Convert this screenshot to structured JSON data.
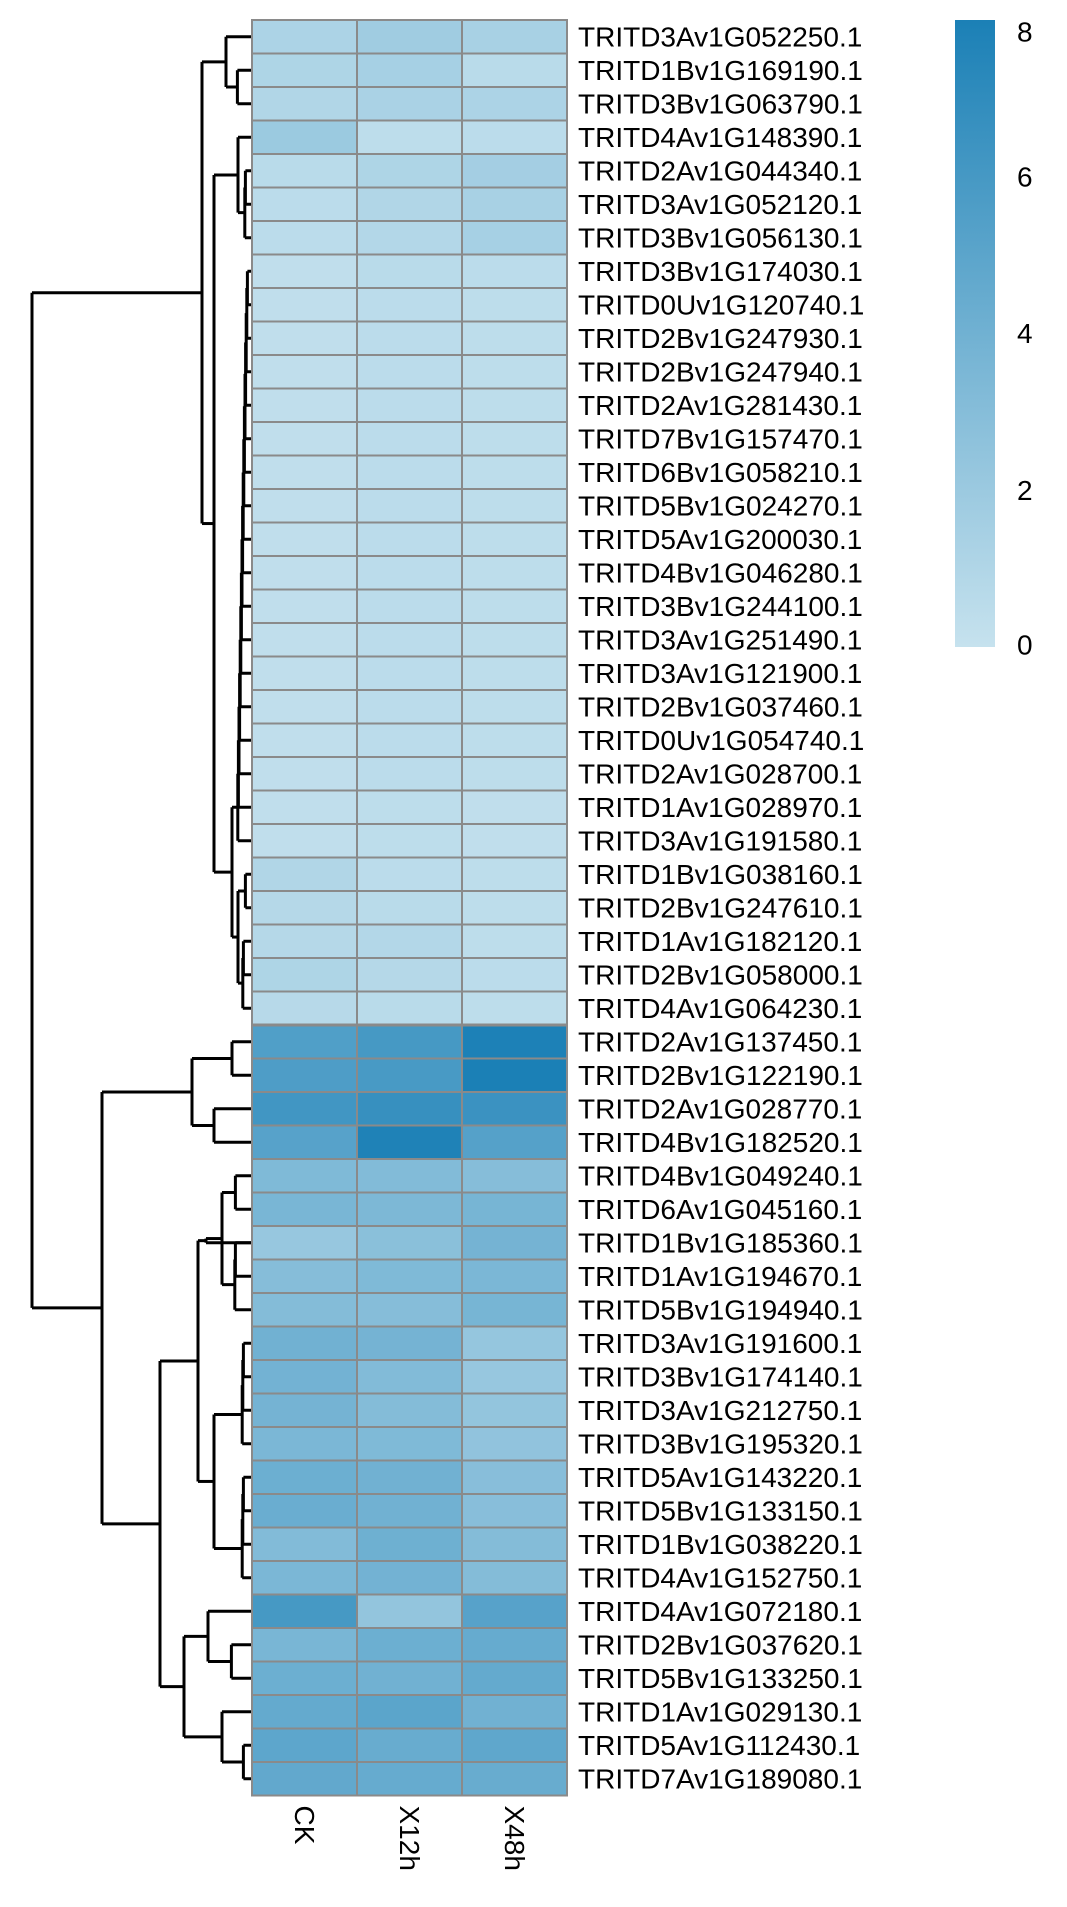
{
  "chart_data": {
    "type": "heatmap",
    "columns": [
      "CK",
      "X12h",
      "X48h"
    ],
    "rows": [
      "TRITD3Av1G052250.1",
      "TRITD1Bv1G169190.1",
      "TRITD3Bv1G063790.1",
      "TRITD4Av1G148390.1",
      "TRITD2Av1G044340.1",
      "TRITD3Av1G052120.1",
      "TRITD3Bv1G056130.1",
      "TRITD3Bv1G174030.1",
      "TRITD0Uv1G120740.1",
      "TRITD2Bv1G247930.1",
      "TRITD2Bv1G247940.1",
      "TRITD2Av1G281430.1",
      "TRITD7Bv1G157470.1",
      "TRITD6Bv1G058210.1",
      "TRITD5Bv1G024270.1",
      "TRITD5Av1G200030.1",
      "TRITD4Bv1G046280.1",
      "TRITD3Bv1G244100.1",
      "TRITD3Av1G251490.1",
      "TRITD3Av1G121900.1",
      "TRITD2Bv1G037460.1",
      "TRITD0Uv1G054740.1",
      "TRITD2Av1G028700.1",
      "TRITD1Av1G028970.1",
      "TRITD3Av1G191580.1",
      "TRITD1Bv1G038160.1",
      "TRITD2Bv1G247610.1",
      "TRITD1Av1G182120.1",
      "TRITD2Bv1G058000.1",
      "TRITD4Av1G064230.1",
      "TRITD2Av1G137450.1",
      "TRITD2Bv1G122190.1",
      "TRITD2Av1G028770.1",
      "TRITD4Bv1G182520.1",
      "TRITD4Bv1G049240.1",
      "TRITD6Av1G045160.1",
      "TRITD1Bv1G185360.1",
      "TRITD1Av1G194670.1",
      "TRITD5Bv1G194940.1",
      "TRITD3Av1G191600.1",
      "TRITD3Bv1G174140.1",
      "TRITD3Av1G212750.1",
      "TRITD3Bv1G195320.1",
      "TRITD5Av1G143220.1",
      "TRITD5Bv1G133150.1",
      "TRITD1Bv1G038220.1",
      "TRITD4Av1G152750.1",
      "TRITD4Av1G072180.1",
      "TRITD2Bv1G037620.1",
      "TRITD5Bv1G133250.1",
      "TRITD1Av1G029130.1",
      "TRITD5Av1G112430.1",
      "TRITD7Av1G189080.1"
    ],
    "values": [
      [
        1.2,
        1.8,
        1.4
      ],
      [
        1.1,
        1.5,
        0.6
      ],
      [
        1.0,
        1.3,
        1.2
      ],
      [
        2.0,
        0.4,
        0.5
      ],
      [
        0.6,
        1.1,
        1.6
      ],
      [
        0.5,
        1.0,
        1.4
      ],
      [
        0.5,
        0.9,
        1.5
      ],
      [
        0.3,
        0.6,
        0.5
      ],
      [
        0.3,
        0.5,
        0.4
      ],
      [
        0.3,
        0.5,
        0.4
      ],
      [
        0.3,
        0.5,
        0.4
      ],
      [
        0.3,
        0.5,
        0.4
      ],
      [
        0.3,
        0.5,
        0.4
      ],
      [
        0.3,
        0.5,
        0.4
      ],
      [
        0.3,
        0.5,
        0.4
      ],
      [
        0.3,
        0.5,
        0.4
      ],
      [
        0.3,
        0.5,
        0.4
      ],
      [
        0.3,
        0.5,
        0.4
      ],
      [
        0.3,
        0.5,
        0.4
      ],
      [
        0.3,
        0.5,
        0.4
      ],
      [
        0.3,
        0.5,
        0.4
      ],
      [
        0.3,
        0.5,
        0.4
      ],
      [
        0.3,
        0.5,
        0.4
      ],
      [
        0.3,
        0.4,
        0.3
      ],
      [
        0.3,
        0.4,
        0.3
      ],
      [
        1.0,
        0.5,
        0.4
      ],
      [
        0.8,
        0.6,
        0.4
      ],
      [
        0.8,
        0.9,
        0.4
      ],
      [
        1.1,
        0.8,
        0.5
      ],
      [
        0.7,
        0.6,
        0.4
      ],
      [
        5.5,
        6.0,
        7.9
      ],
      [
        5.6,
        5.9,
        8.0
      ],
      [
        6.2,
        6.7,
        6.5
      ],
      [
        5.2,
        7.8,
        5.3
      ],
      [
        3.3,
        3.2,
        3.0
      ],
      [
        3.6,
        3.4,
        3.7
      ],
      [
        2.2,
        2.8,
        3.8
      ],
      [
        3.0,
        3.3,
        3.5
      ],
      [
        3.1,
        3.0,
        3.7
      ],
      [
        4.0,
        3.8,
        2.3
      ],
      [
        3.9,
        3.2,
        2.2
      ],
      [
        3.8,
        3.1,
        2.4
      ],
      [
        3.5,
        3.3,
        2.5
      ],
      [
        4.2,
        4.0,
        2.9
      ],
      [
        4.3,
        4.0,
        2.9
      ],
      [
        3.2,
        4.1,
        3.1
      ],
      [
        3.5,
        3.9,
        3.1
      ],
      [
        6.0,
        2.4,
        5.2
      ],
      [
        3.6,
        4.2,
        4.5
      ],
      [
        4.2,
        4.0,
        4.6
      ],
      [
        4.6,
        5.0,
        4.0
      ],
      [
        4.9,
        4.4,
        4.8
      ],
      [
        4.7,
        4.5,
        4.4
      ]
    ],
    "color_scale": {
      "min": 0,
      "max": 8,
      "low_color": "#c6e2ee",
      "high_color": "#1b80b6"
    },
    "legend_ticks": [
      0,
      2,
      4,
      6,
      8
    ],
    "cluster_split_after_row": 30,
    "row_dendrogram": [
      [
        "l01",
        "l02",
        "l03"
      ],
      [
        "l05",
        "l06",
        "l07"
      ],
      [
        "l08",
        "l09",
        "l10",
        "l11",
        "l12",
        "l13",
        "l14",
        "l15",
        "l16",
        "l17",
        "l18",
        "l19",
        "l20",
        "l21",
        "l22",
        "l23",
        "l24",
        "l25"
      ],
      [
        "l26",
        "l27",
        "l28",
        "l29",
        "l30"
      ],
      [
        "l31",
        "l32",
        "l33",
        "l34"
      ],
      [
        "l35",
        "l36",
        "l37",
        "l38",
        "l39"
      ],
      [
        "l40",
        "l41",
        "l42",
        "l43"
      ],
      [
        "l44",
        "l45",
        "l46",
        "l47"
      ],
      [
        "l48",
        "l49",
        "l50",
        "l51",
        "l52",
        "l53"
      ]
    ]
  }
}
